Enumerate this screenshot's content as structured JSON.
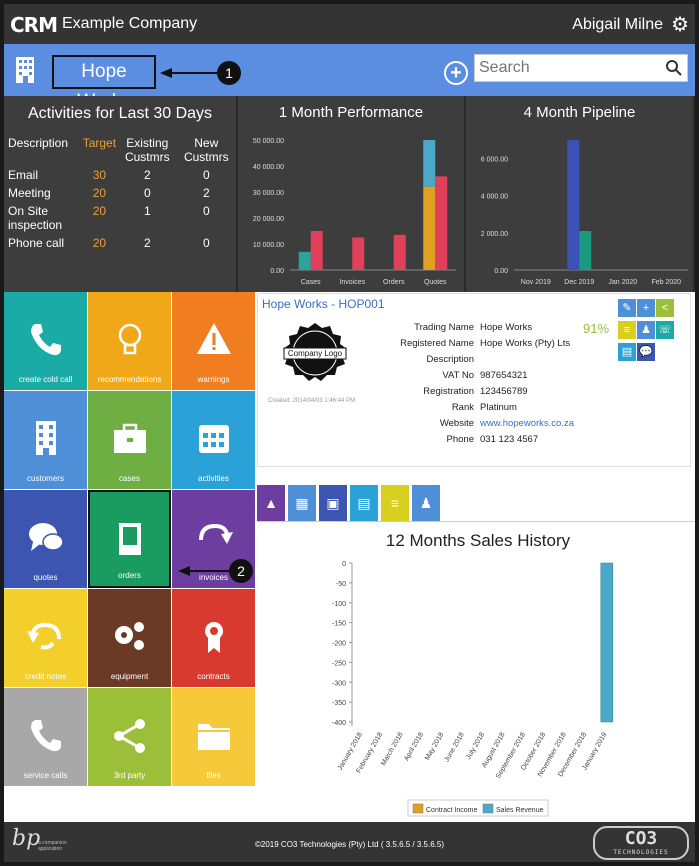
{
  "topbar": {
    "logo": "CRM",
    "company": "Example Company",
    "username": "Abigail Milne"
  },
  "header": {
    "title": "Hope Works",
    "search_placeholder": "Search",
    "callout_1": "1"
  },
  "activities": {
    "title": "Activities for Last 30 Days",
    "headers": [
      "Description",
      "Target",
      "Existing Custmrs",
      "New Custmrs"
    ],
    "rows": [
      {
        "desc": "Email",
        "target": "30",
        "existing": "2",
        "new": "0"
      },
      {
        "desc": "Meeting",
        "target": "20",
        "existing": "0",
        "new": "2"
      },
      {
        "desc": "On Site inspection",
        "target": "20",
        "existing": "1",
        "new": "0"
      },
      {
        "desc": "Phone call",
        "target": "20",
        "existing": "2",
        "new": "0"
      }
    ]
  },
  "performance": {
    "title": "1 Month Performance",
    "chart_data": {
      "type": "bar",
      "categories": [
        "Cases",
        "Invoices",
        "Orders",
        "Quotes"
      ],
      "yticks": [
        "50 000.00",
        "40 000.00",
        "30 000.00",
        "20 000.00",
        "10 000.00",
        "0.00"
      ],
      "ylim": [
        0,
        50000
      ],
      "series": [
        {
          "values": [
            7000,
            0,
            0,
            32000
          ],
          "color": "#2aa39a"
        },
        {
          "values": [
            15000,
            12500,
            13500,
            36000
          ],
          "color": "#e0405a"
        }
      ],
      "quotes_top_segment": 50000,
      "quotes_top_color": "#4aa9c8",
      "quotes_stack_color": "#e0a020"
    }
  },
  "pipeline": {
    "title": "4 Month Pipeline",
    "chart_data": {
      "type": "bar",
      "categories": [
        "Nov 2019",
        "Dec 2019",
        "Jan 2020",
        "Feb 2020"
      ],
      "yticks": [
        "6 000.00",
        "4 000.00",
        "2 000.00",
        "0.00"
      ],
      "ylim": [
        0,
        7000
      ],
      "series": [
        {
          "values": [
            0,
            7000,
            0,
            0
          ],
          "color": "#3a52b8"
        },
        {
          "values": [
            0,
            2100,
            0,
            0
          ],
          "color": "#1a9b80"
        }
      ]
    }
  },
  "tiles": [
    {
      "label": "create cold call",
      "icon": "phone-icon",
      "color": "#1aaba6"
    },
    {
      "label": "recommendations",
      "icon": "lightbulb-icon",
      "color": "#f0a818"
    },
    {
      "label": "warnings",
      "icon": "warning-icon",
      "color": "#f07d20"
    },
    {
      "label": "customers",
      "icon": "building-icon",
      "color": "#4f8fd8"
    },
    {
      "label": "cases",
      "icon": "briefcase-icon",
      "color": "#6fae43"
    },
    {
      "label": "activities",
      "icon": "calendar-icon",
      "color": "#2aa2d8"
    },
    {
      "label": "quotes",
      "icon": "chat-icon",
      "color": "#3b55b0"
    },
    {
      "label": "orders",
      "icon": "book-icon",
      "color": "#1a9b60"
    },
    {
      "label": "invoices",
      "icon": "redo-icon",
      "color": "#6d3ea0"
    },
    {
      "label": "credit notes",
      "icon": "undo-icon",
      "color": "#f2cf2a"
    },
    {
      "label": "equipment",
      "icon": "cogs-icon",
      "color": "#6b3a26"
    },
    {
      "label": "contracts",
      "icon": "award-icon",
      "color": "#d83a30"
    },
    {
      "label": "service calls",
      "icon": "phone-icon",
      "color": "#a8a8a8"
    },
    {
      "label": "3rd party",
      "icon": "share-icon",
      "color": "#9cbf3a"
    },
    {
      "label": "files",
      "icon": "folder-icon",
      "color": "#f5c93a"
    }
  ],
  "callout_2": "2",
  "customer": {
    "title": "Hope Works - HOP001",
    "logo_text": "Company Logo",
    "created": "Created: 2014/04/03 1:46:44 PM",
    "percent": "91%",
    "fields": [
      {
        "label": "Trading Name",
        "value": "Hope Works"
      },
      {
        "label": "Registered Name",
        "value": "Hope Works (Pty) Lts"
      },
      {
        "label": "Description",
        "value": ""
      },
      {
        "label": "VAT No",
        "value": "987654321"
      },
      {
        "label": "Registration",
        "value": "123456789"
      },
      {
        "label": "Rank",
        "value": "Platinum"
      },
      {
        "label": "Website",
        "value": "www.hopeworks.co.za"
      },
      {
        "label": "Phone",
        "value": "031 123 4567"
      }
    ],
    "actions": [
      {
        "icon": "edit-icon",
        "color": "#4f8fd8",
        "glyph": "✎"
      },
      {
        "icon": "add-user-icon",
        "color": "#4f8fd8",
        "glyph": "+"
      },
      {
        "icon": "share-icon",
        "color": "#9cbf3a",
        "glyph": "<"
      },
      {
        "icon": "document-icon",
        "color": "#d8d020",
        "glyph": "≡"
      },
      {
        "icon": "users-icon",
        "color": "#4f8fd8",
        "glyph": "♟"
      },
      {
        "icon": "phone-icon",
        "color": "#1aaba6",
        "glyph": "☏"
      },
      {
        "icon": "list-icon",
        "color": "#2aa2d8",
        "glyph": "▤"
      },
      {
        "icon": "chat-icon",
        "color": "#3b55b0",
        "glyph": "💬"
      }
    ]
  },
  "tabs": [
    {
      "icon": "chart-icon",
      "color": "#6d3ea0"
    },
    {
      "icon": "building-icon",
      "color": "#4f8fd8"
    },
    {
      "icon": "contact-icon",
      "color": "#3b55b0"
    },
    {
      "icon": "calendar-icon",
      "color": "#2aa2d8"
    },
    {
      "icon": "document-icon",
      "color": "#d8d020"
    },
    {
      "icon": "users-icon",
      "color": "#4f8fd8"
    }
  ],
  "sales_history": {
    "title": "12 Months Sales History",
    "chart_data": {
      "type": "bar",
      "categories": [
        "January 2018",
        "February 2018",
        "March 2018",
        "April 2018",
        "May 2018",
        "June 2018",
        "July 2018",
        "August 2018",
        "September 2018",
        "October 2018",
        "November 2018",
        "December 2018",
        "January 2019"
      ],
      "yticks": [
        "0",
        "-50",
        "-100",
        "-150",
        "-200",
        "-250",
        "-300",
        "-350",
        "-400"
      ],
      "ylim": [
        -400,
        0
      ],
      "series": [
        {
          "name": "Contract Income",
          "values": [
            0,
            0,
            0,
            0,
            0,
            0,
            0,
            0,
            0,
            0,
            0,
            0,
            0
          ],
          "color": "#e0a020"
        },
        {
          "name": "Sales Revenue",
          "values": [
            0,
            0,
            0,
            0,
            0,
            0,
            0,
            0,
            0,
            0,
            0,
            0,
            -400
          ],
          "color": "#4aa9c8"
        }
      ]
    }
  },
  "footer": {
    "bp_logo": "bp",
    "bp_sub_1": "a companion",
    "bp_sub_2": "application",
    "copyright": "©2019 CO3 Technologies (Pty) Ltd ( 3.5.6.5 / 3.5.6.5)",
    "co3": "CO3",
    "co3_sub": "TECHNOLOGIES"
  }
}
